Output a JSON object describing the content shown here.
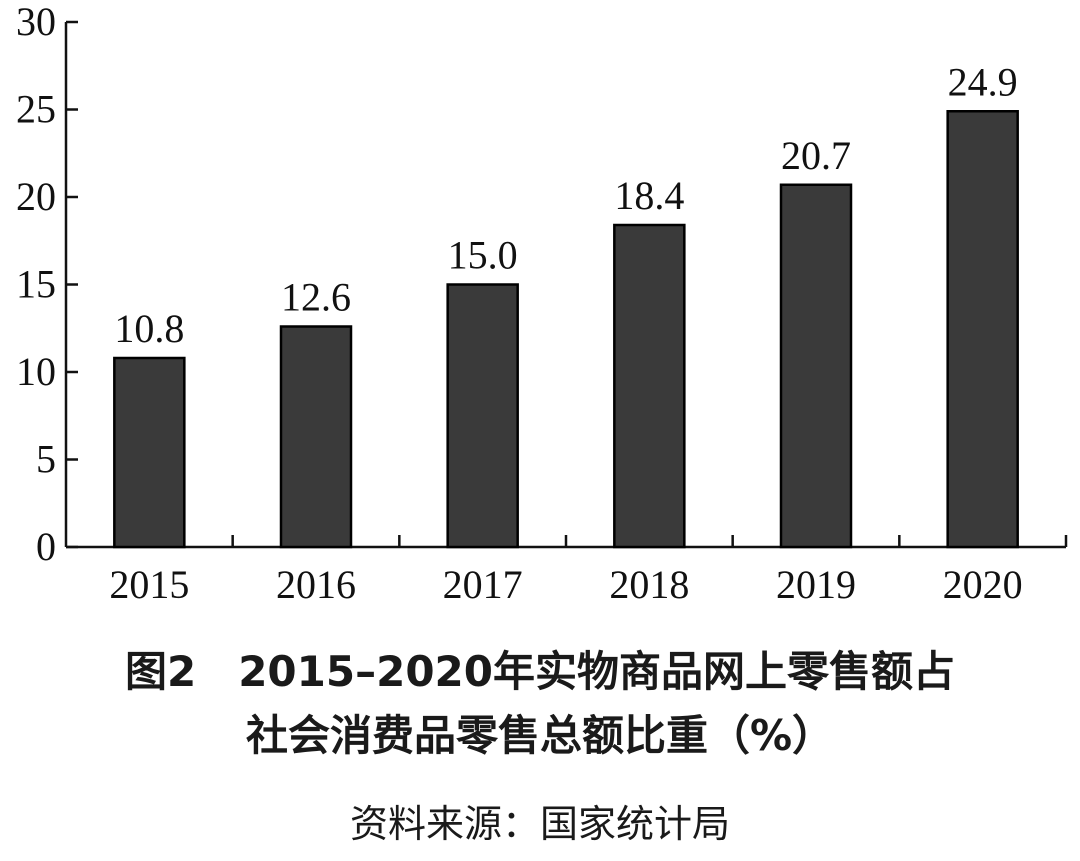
{
  "chart_data": {
    "type": "bar",
    "categories": [
      "2015",
      "2016",
      "2017",
      "2018",
      "2019",
      "2020"
    ],
    "values": [
      10.8,
      12.6,
      15.0,
      18.4,
      20.7,
      24.9
    ],
    "value_labels": [
      "10.8",
      "12.6",
      "15.0",
      "18.4",
      "20.7",
      "24.9"
    ],
    "ylim": [
      0,
      30
    ],
    "yticks": [
      "0",
      "5",
      "10",
      "15",
      "20",
      "25",
      "30"
    ],
    "grid": false,
    "bar_color": "#3a3a3a",
    "bar_edge_color": "#000000"
  },
  "caption": {
    "title_line1": "图2　2015–2020年实物商品网上零售额占",
    "title_line2": "社会消费品零售总额比重（%）",
    "source": "资料来源：国家统计局"
  }
}
